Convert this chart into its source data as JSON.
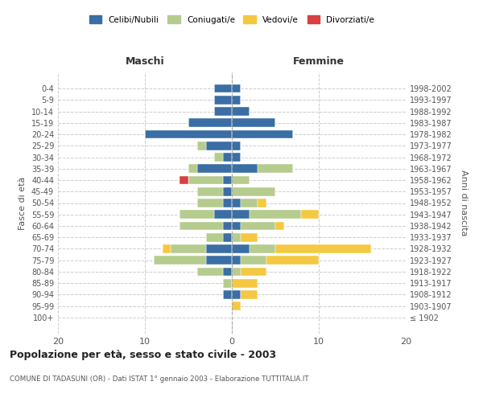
{
  "age_groups": [
    "100+",
    "95-99",
    "90-94",
    "85-89",
    "80-84",
    "75-79",
    "70-74",
    "65-69",
    "60-64",
    "55-59",
    "50-54",
    "45-49",
    "40-44",
    "35-39",
    "30-34",
    "25-29",
    "20-24",
    "15-19",
    "10-14",
    "5-9",
    "0-4"
  ],
  "birth_years": [
    "≤ 1902",
    "1903-1907",
    "1908-1912",
    "1913-1917",
    "1918-1922",
    "1923-1927",
    "1928-1932",
    "1933-1937",
    "1938-1942",
    "1943-1947",
    "1948-1952",
    "1953-1957",
    "1958-1962",
    "1963-1967",
    "1968-1972",
    "1973-1977",
    "1978-1982",
    "1983-1987",
    "1988-1992",
    "1993-1997",
    "1998-2002"
  ],
  "maschi": {
    "celibi": [
      0,
      0,
      1,
      0,
      1,
      3,
      3,
      1,
      1,
      2,
      1,
      1,
      1,
      4,
      1,
      3,
      10,
      5,
      2,
      2,
      2
    ],
    "coniugati": [
      0,
      0,
      0,
      1,
      3,
      6,
      4,
      2,
      5,
      4,
      3,
      3,
      4,
      1,
      1,
      1,
      0,
      0,
      0,
      0,
      0
    ],
    "vedovi": [
      0,
      0,
      0,
      0,
      0,
      0,
      1,
      0,
      0,
      0,
      0,
      0,
      0,
      0,
      0,
      0,
      0,
      0,
      0,
      0,
      0
    ],
    "divorziati": [
      0,
      0,
      0,
      0,
      0,
      0,
      0,
      0,
      0,
      0,
      0,
      0,
      1,
      0,
      0,
      0,
      0,
      0,
      0,
      0,
      0
    ]
  },
  "femmine": {
    "celibi": [
      0,
      0,
      1,
      0,
      0,
      1,
      2,
      0,
      1,
      2,
      1,
      0,
      0,
      3,
      1,
      1,
      7,
      5,
      2,
      1,
      1
    ],
    "coniugati": [
      0,
      0,
      0,
      0,
      1,
      3,
      3,
      1,
      4,
      6,
      2,
      5,
      2,
      4,
      0,
      0,
      0,
      0,
      0,
      0,
      0
    ],
    "vedovi": [
      0,
      1,
      2,
      3,
      3,
      6,
      11,
      2,
      1,
      2,
      1,
      0,
      0,
      0,
      0,
      0,
      0,
      0,
      0,
      0,
      0
    ],
    "divorziati": [
      0,
      0,
      0,
      0,
      0,
      0,
      0,
      0,
      0,
      0,
      0,
      0,
      0,
      0,
      0,
      0,
      0,
      0,
      0,
      0,
      0
    ]
  },
  "colors": {
    "celibi": "#3a6ea5",
    "coniugati": "#b5cc8e",
    "vedovi": "#f5c842",
    "divorziati": "#d94040"
  },
  "xlim": 20,
  "title": "Popolazione per età, sesso e stato civile - 2003",
  "subtitle": "COMUNE DI TADASUNI (OR) - Dati ISTAT 1° gennaio 2003 - Elaborazione TUTTITALIA.IT",
  "ylabel_left": "Fasce di età",
  "ylabel_right": "Anni di nascita",
  "xlabel_maschi": "Maschi",
  "xlabel_femmine": "Femmine",
  "legend_labels": [
    "Celibi/Nubili",
    "Coniugati/e",
    "Vedovi/e",
    "Divorziati/e"
  ],
  "bg_color": "#ffffff",
  "grid_color": "#cccccc"
}
